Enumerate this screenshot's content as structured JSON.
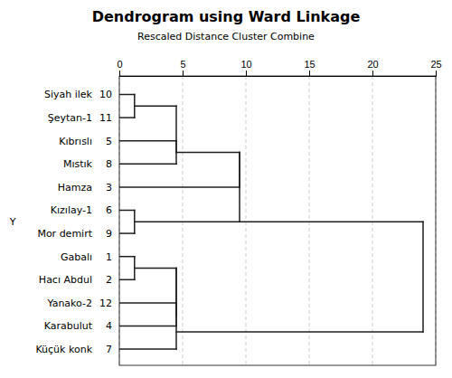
{
  "chart_data": {
    "type": "dendrogram",
    "title": "Dendrogram using Ward Linkage",
    "subtitle": "Rescaled Distance Cluster Combine",
    "ylabel": "Y",
    "xlim": [
      0,
      25
    ],
    "xticks": [
      0,
      5,
      10,
      15,
      20,
      25
    ],
    "ylim": [
      0.3,
      12.8
    ],
    "grid": true,
    "categories": [
      "Siyah ilek",
      "Şeytan-1",
      "Kıbrıslı",
      "Mıstık",
      "Hamza",
      "Kızılay-1",
      "Mor demirt",
      "Gabalı",
      "Hacı Abdul",
      "Yanako-2",
      "Karabulut",
      "Küçük konk"
    ],
    "ids": [
      "10",
      "11",
      "5",
      "8",
      "3",
      "6",
      "9",
      "1",
      "2",
      "12",
      "4",
      "7"
    ],
    "y_positions": [
      12,
      11,
      10,
      9,
      8,
      7,
      6,
      5,
      4,
      3,
      2,
      1
    ],
    "segments": [
      {
        "x1": 0,
        "y1": 12,
        "x2": 1.2,
        "y2": 12
      },
      {
        "x1": 0,
        "y1": 11,
        "x2": 1.2,
        "y2": 11
      },
      {
        "x1": 1.2,
        "y1": 11,
        "x2": 1.2,
        "y2": 12
      },
      {
        "x1": 1.2,
        "y1": 11.5,
        "x2": 4.5,
        "y2": 11.5
      },
      {
        "x1": 0,
        "y1": 10,
        "x2": 4.5,
        "y2": 10
      },
      {
        "x1": 0,
        "y1": 9,
        "x2": 4.5,
        "y2": 9
      },
      {
        "x1": 4.5,
        "y1": 9,
        "x2": 4.5,
        "y2": 10
      },
      {
        "x1": 4.5,
        "y1": 9.5,
        "x2": 4.5,
        "y2": 11.5
      },
      {
        "x1": 4.5,
        "y1": 9.5,
        "x2": 9.5,
        "y2": 9.5
      },
      {
        "x1": 0,
        "y1": 8,
        "x2": 9.5,
        "y2": 8
      },
      {
        "x1": 9.5,
        "y1": 8,
        "x2": 9.5,
        "y2": 9.5
      },
      {
        "x1": 0,
        "y1": 7,
        "x2": 1.2,
        "y2": 7
      },
      {
        "x1": 0,
        "y1": 6,
        "x2": 1.2,
        "y2": 6
      },
      {
        "x1": 1.2,
        "y1": 6,
        "x2": 1.2,
        "y2": 7
      },
      {
        "x1": 1.2,
        "y1": 6.5,
        "x2": 9.5,
        "y2": 6.5
      },
      {
        "x1": 9.5,
        "y1": 6.5,
        "x2": 9.5,
        "y2": 9.5
      },
      {
        "x1": 9.5,
        "y1": 6.5,
        "x2": 24.0,
        "y2": 6.5
      },
      {
        "x1": 24.0,
        "y1": 6.5,
        "x2": 24.0,
        "y2": 1.75
      },
      {
        "x1": 0,
        "y1": 5,
        "x2": 1.2,
        "y2": 5
      },
      {
        "x1": 0,
        "y1": 4,
        "x2": 1.2,
        "y2": 4
      },
      {
        "x1": 1.2,
        "y1": 4,
        "x2": 1.2,
        "y2": 5
      },
      {
        "x1": 1.2,
        "y1": 4.5,
        "x2": 4.5,
        "y2": 4.5
      },
      {
        "x1": 0,
        "y1": 3,
        "x2": 4.5,
        "y2": 3
      },
      {
        "x1": 0,
        "y1": 2,
        "x2": 4.5,
        "y2": 2
      },
      {
        "x1": 4.5,
        "y1": 2,
        "x2": 4.5,
        "y2": 3
      },
      {
        "x1": 4.5,
        "y1": 2.5,
        "x2": 4.5,
        "y2": 4.5
      },
      {
        "x1": 4.5,
        "y1": 2.5,
        "x2": 4.5,
        "y2": 4.5
      },
      {
        "x1": 0,
        "y1": 1,
        "x2": 4.5,
        "y2": 1
      },
      {
        "x1": 4.5,
        "y1": 1,
        "x2": 4.5,
        "y2": 2.5
      },
      {
        "x1": 4.5,
        "y1": 1.75,
        "x2": 24.0,
        "y2": 1.75
      }
    ]
  }
}
